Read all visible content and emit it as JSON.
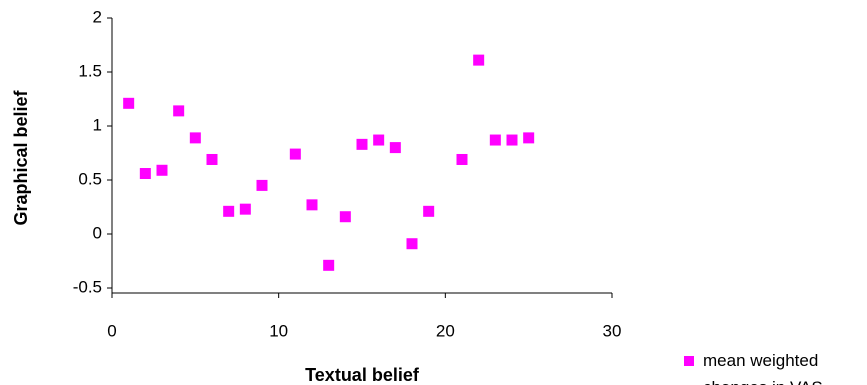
{
  "chart_data": {
    "type": "scatter",
    "x_label": "Textual belief",
    "y_label": "Graphical belief",
    "xlim": [
      0,
      30
    ],
    "xticks": [
      0,
      10,
      20,
      30
    ],
    "ylim": [
      -0.5,
      2
    ],
    "yticks": [
      {
        "value": -0.5,
        "label": "-0.5"
      },
      0,
      0.5,
      1,
      1.5,
      2
    ],
    "grid": false,
    "legend": "right",
    "series": [
      {
        "name": "mean weighted changes in VAS",
        "color": "#ff00ff",
        "x": [
          1,
          2,
          3,
          4,
          5,
          6,
          7,
          8,
          9,
          11,
          12,
          13,
          14,
          15,
          16,
          17,
          18,
          19,
          21,
          22,
          23,
          24,
          25
        ],
        "values": [
          1.21,
          0.56,
          0.59,
          1.14,
          0.89,
          0.69,
          0.21,
          0.23,
          0.45,
          0.74,
          0.27,
          -0.29,
          0.16,
          0.83,
          0.87,
          0.8,
          -0.09,
          0.21,
          0.69,
          1.61,
          0.87,
          0.87,
          0.89
        ]
      }
    ]
  }
}
